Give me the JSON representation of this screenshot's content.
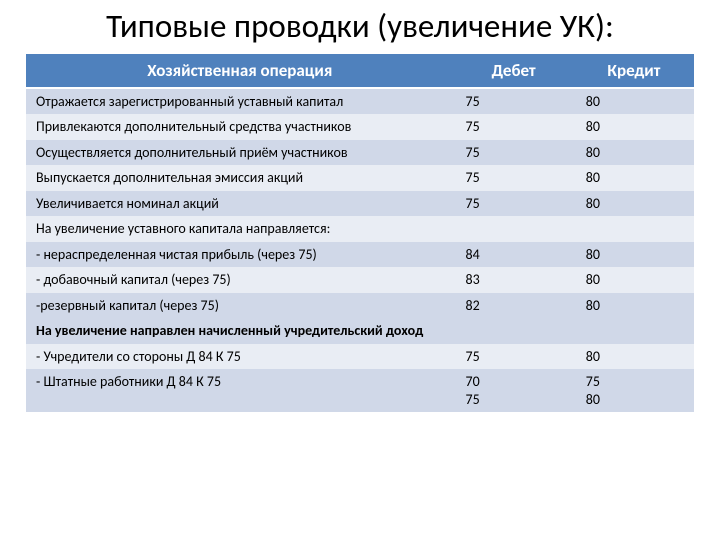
{
  "title": "Типовые проводки (увеличение УК):",
  "colors": {
    "header_bg": "#4f81bd",
    "header_fg": "#ffffff",
    "row_light": "#d0d8e8",
    "row_dark": "#e9edf4",
    "text": "#000000",
    "page_bg": "#ffffff"
  },
  "table": {
    "columns": {
      "operation": "Хозяйственная операция",
      "debit": "Дебет",
      "credit": "Кредит"
    },
    "rows": [
      {
        "op": "Отражается зарегистрированный уставный капитал",
        "debit": "75",
        "credit": "80",
        "shade": "light",
        "bold": false
      },
      {
        "op": "Привлекаются дополнительный средства участников",
        "debit": "75",
        "credit": "80",
        "shade": "dark",
        "bold": false
      },
      {
        "op": "Осуществляется дополнительный приём участников",
        "debit": "75",
        "credit": "80",
        "shade": "light",
        "bold": false
      },
      {
        "op": "Выпускается дополнительная эмиссия акций",
        "debit": "75",
        "credit": "80",
        "shade": "dark",
        "bold": false
      },
      {
        "op": "Увеличивается номинал акций",
        "debit": "75",
        "credit": "80",
        "shade": "light",
        "bold": false
      },
      {
        "op": "На увеличение уставного капитала направляется:",
        "debit": "",
        "credit": "",
        "shade": "dark",
        "bold": false
      },
      {
        "op": "- нераспределенная чистая прибыль  (через 75)",
        "debit": "84",
        "credit": "80",
        "shade": "light",
        "bold": false
      },
      {
        "op": "- добавочный капитал  (через 75)",
        "debit": "83",
        "credit": "80",
        "shade": "dark",
        "bold": false
      },
      {
        "op": "-резервный капитал  (через 75)",
        "debit": "82",
        "credit": "80",
        "shade": "light",
        "bold": false
      },
      {
        "op": "На увеличение направлен начисленный учредительский доход",
        "debit": "",
        "credit": "",
        "shade": "light",
        "bold": true
      },
      {
        "op": "- Учредители со стороны Д 84 К 75",
        "debit": "75",
        "credit": "80",
        "shade": "dark",
        "bold": false
      },
      {
        "op": "- Штатные работники Д 84 К 75",
        "debit": "70\n75",
        "credit": "75\n80",
        "shade": "light",
        "bold": false
      }
    ]
  },
  "typography": {
    "title_fontsize": 33,
    "header_fontsize": 17,
    "cell_fontsize": 14
  }
}
